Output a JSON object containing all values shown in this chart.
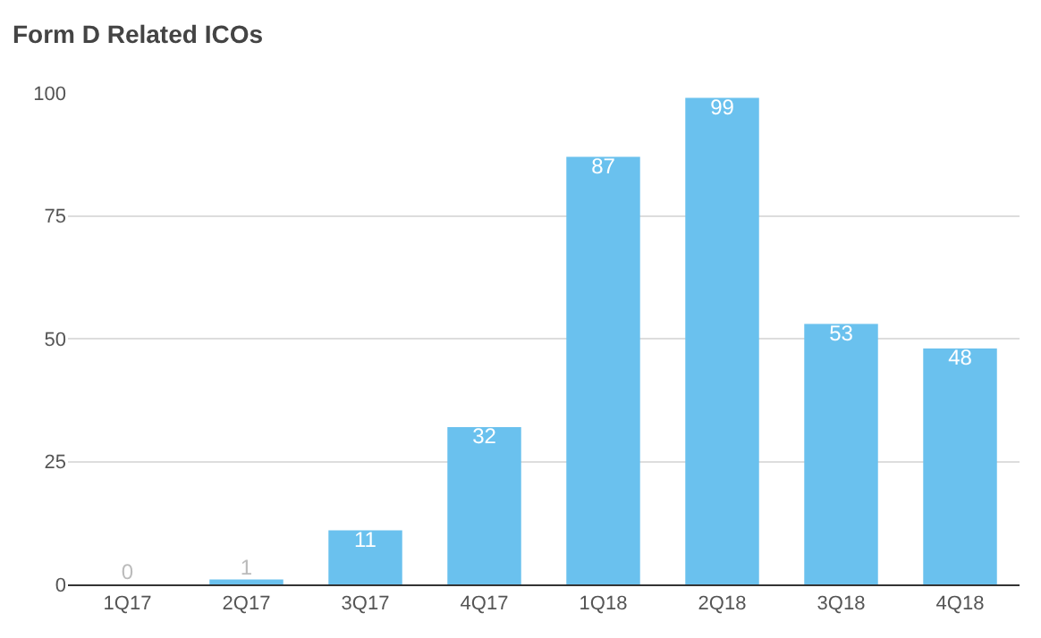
{
  "chart_data": {
    "type": "bar",
    "title": "Form D Related ICOs",
    "categories": [
      "1Q17",
      "2Q17",
      "3Q17",
      "4Q17",
      "1Q18",
      "2Q18",
      "3Q18",
      "4Q18"
    ],
    "values": [
      0,
      1,
      11,
      32,
      87,
      99,
      53,
      48
    ],
    "color": "#6ac1ee",
    "ylim": [
      0,
      100
    ],
    "yticks": [
      0,
      25,
      50,
      75,
      100
    ],
    "grid": "y",
    "data_labels": true
  }
}
